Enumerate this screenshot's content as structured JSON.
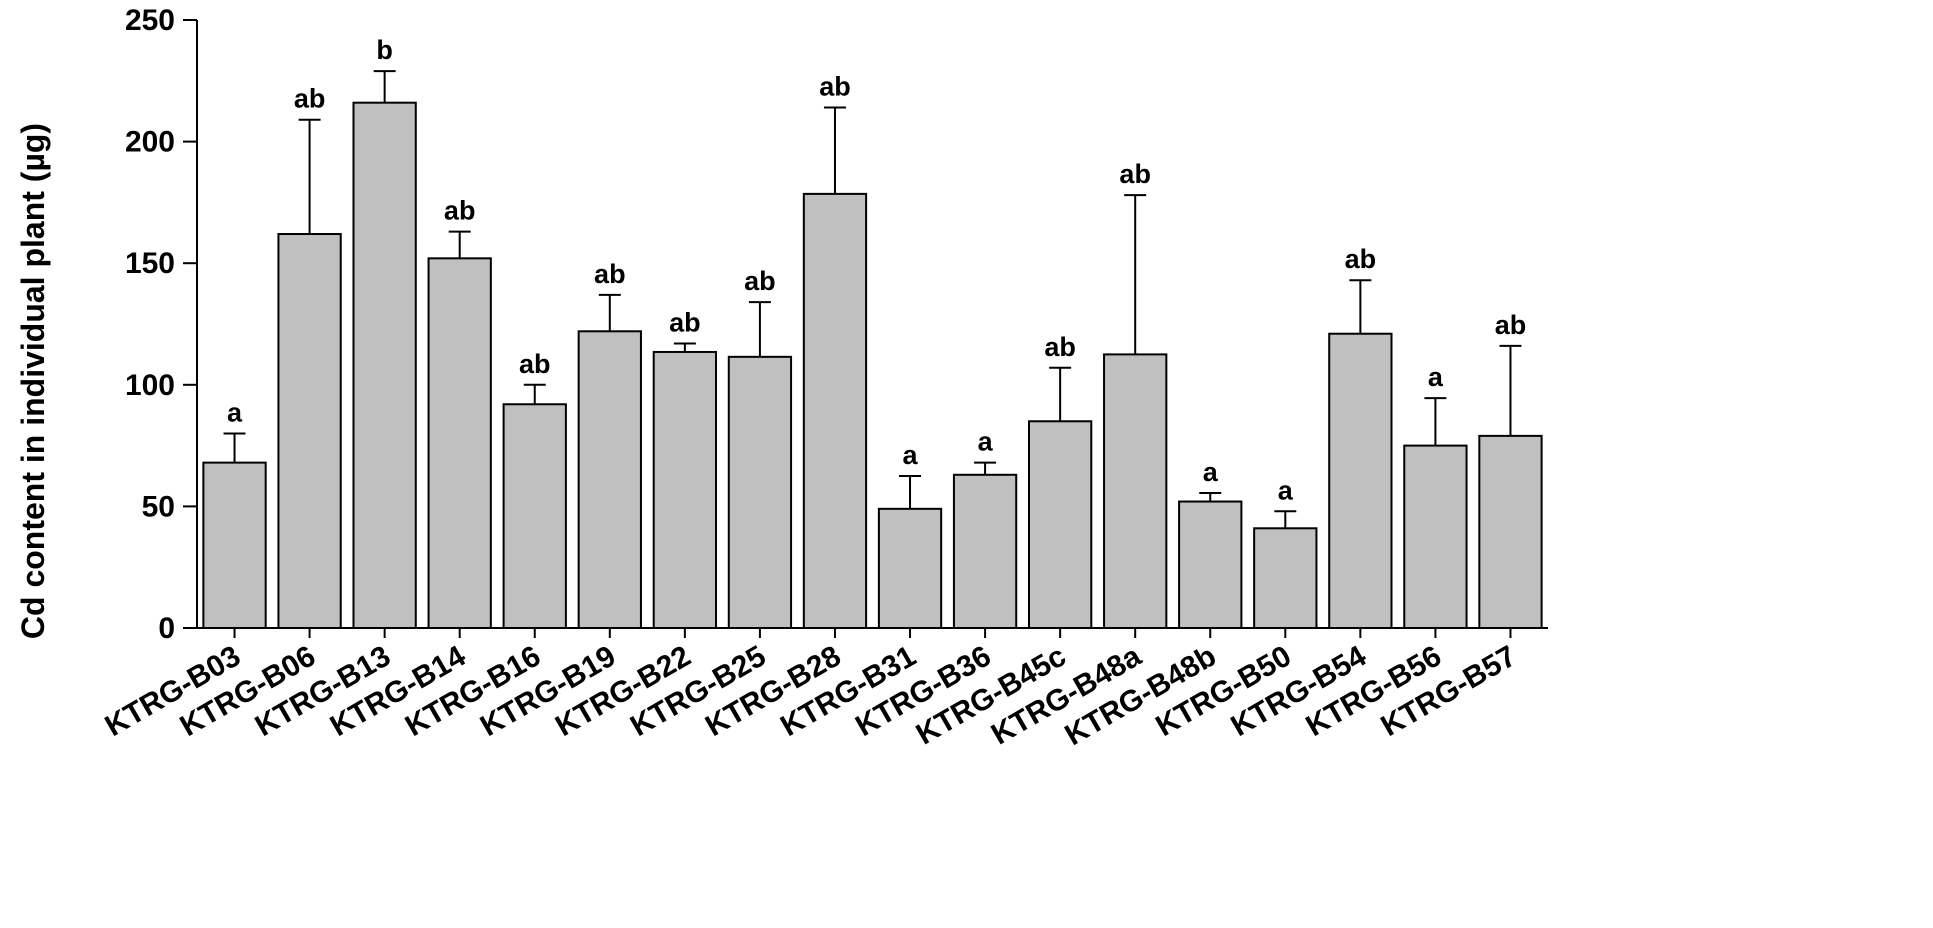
{
  "chart_data": {
    "type": "bar",
    "title": "",
    "xlabel": "",
    "ylabel": "Cd content in individual plant (µg)",
    "ylim": [
      0,
      250
    ],
    "yticks": [
      0,
      50,
      100,
      150,
      200,
      250
    ],
    "grid": false,
    "legend": "none",
    "colors": {
      "bar_fill": "#c0c0c0",
      "bar_stroke": "#000000",
      "axis": "#000000"
    },
    "categories": [
      "KTRG-B03",
      "KTRG-B06",
      "KTRG-B13",
      "KTRG-B14",
      "KTRG-B16",
      "KTRG-B19",
      "KTRG-B22",
      "KTRG-B25",
      "KTRG-B28",
      "KTRG-B31",
      "KTRG-B36",
      "KTRG-B45c",
      "KTRG-B48a",
      "KTRG-B48b",
      "KTRG-B50",
      "KTRG-B54",
      "KTRG-B56",
      "KTRG-B57"
    ],
    "values": [
      68,
      162,
      216,
      152,
      92,
      122,
      113.5,
      111.5,
      178.5,
      49,
      63,
      85,
      112.5,
      52,
      41,
      121,
      75,
      79
    ],
    "error": [
      12,
      47,
      13,
      11,
      8,
      15,
      3.5,
      22.5,
      35.5,
      13.5,
      5,
      22,
      65.5,
      3.5,
      7,
      22,
      19.5,
      37
    ],
    "significance": [
      "a",
      "ab",
      "b",
      "ab",
      "ab",
      "ab",
      "ab",
      "ab",
      "ab",
      "a",
      "a",
      "ab",
      "ab",
      "a",
      "a",
      "ab",
      "a",
      "ab"
    ]
  }
}
